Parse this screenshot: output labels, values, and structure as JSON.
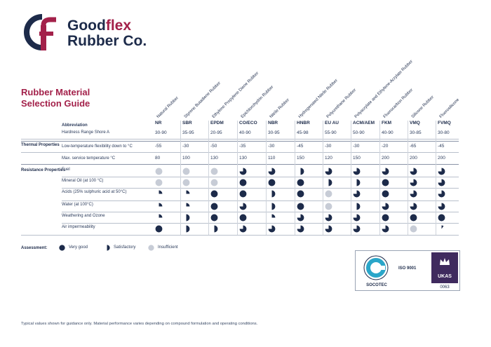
{
  "brand": {
    "line1_main": "Good",
    "line1_accent": "flex",
    "line2": "Rubber Co."
  },
  "title": {
    "line1": "Rubber Material",
    "line2": "Selection Guide"
  },
  "columns": [
    {
      "name": "Natural Rubber",
      "abbr": "NR",
      "hardness": "30-90",
      "low_temp": "-55",
      "max_temp": "80"
    },
    {
      "name": "Styrene Butadiene Rubber",
      "abbr": "SBR",
      "hardness": "35-95",
      "low_temp": "-30",
      "max_temp": "100"
    },
    {
      "name": "Ethylene Propylene Diene Rubber",
      "abbr": "EPDM",
      "hardness": "20-95",
      "low_temp": "-50",
      "max_temp": "130"
    },
    {
      "name": "Epichlorohydrin Rubber",
      "abbr": "CO/ECO",
      "hardness": "40-90",
      "low_temp": "-35",
      "max_temp": "130"
    },
    {
      "name": "Nitrile Rubber",
      "abbr": "NBR",
      "hardness": "30-95",
      "low_temp": "-30",
      "max_temp": "110"
    },
    {
      "name": "Hydrogenated Nitrile Rubber",
      "abbr": "HNBR",
      "hardness": "45-98",
      "low_temp": "-45",
      "max_temp": "150"
    },
    {
      "name": "Polyurethane Rubber",
      "abbr": "EU AU",
      "hardness": "55-90",
      "low_temp": "-30",
      "max_temp": "120"
    },
    {
      "name": "Polyacrylate and Ethylene-Acrylate Rubber",
      "abbr": "ACM/AEM",
      "hardness": "50-90",
      "low_temp": "-30",
      "max_temp": "150"
    },
    {
      "name": "Fluorocarbon Rubber",
      "abbr": "FKM",
      "hardness": "40-90",
      "low_temp": "-20",
      "max_temp": "200"
    },
    {
      "name": "Silicone Rubber",
      "abbr": "VMQ",
      "hardness": "30-85",
      "low_temp": "-65",
      "max_temp": "200"
    },
    {
      "name": "Fluorosilicone",
      "abbr": "FVMQ",
      "hardness": "30-80",
      "low_temp": "-45",
      "max_temp": "200"
    }
  ],
  "rows": {
    "abbreviation": "Abbreviation",
    "hardness": "Hardness Range Shore A",
    "thermal_group": "Thermal Properties",
    "low_temp": "Low-temperature flexibility down to °C",
    "max_temp": "Max. service temperature °C",
    "resistance_group": "Resistance Properties"
  },
  "resistance_rows": [
    {
      "label": "Fuel",
      "ratings": [
        0,
        0,
        0,
        0.75,
        0.75,
        0.5,
        0.75,
        0.75,
        0.75,
        0.75,
        0.75
      ]
    },
    {
      "label": "Mineral Oil (at 100 °C)",
      "ratings": [
        0,
        0,
        0,
        1,
        1,
        1,
        0.5,
        0.5,
        1,
        0.75,
        0.75
      ]
    },
    {
      "label": "Acids (25% sulphuric acid at 50°C)",
      "ratings": [
        0.25,
        0.25,
        1,
        1,
        0.5,
        1,
        0,
        0.75,
        1,
        0.75,
        0.75
      ]
    },
    {
      "label": "Water (at 100°C)",
      "ratings": [
        0.25,
        0.25,
        1,
        0.75,
        0.5,
        1,
        0,
        0.5,
        0.75,
        0.75,
        0.75
      ]
    },
    {
      "label": "Weathering and Ozone",
      "ratings": [
        0.25,
        0.5,
        1,
        1,
        0.25,
        0.75,
        0.75,
        0.75,
        1,
        1,
        1
      ]
    },
    {
      "label": "Air impermeability",
      "ratings": [
        1,
        0.5,
        0.5,
        0.75,
        0.75,
        0.75,
        0.75,
        0.75,
        0.75,
        0,
        0.1
      ]
    }
  ],
  "legend": {
    "title": "Assessment:",
    "very_good": "Very good",
    "satisfactory": "Satisfactory",
    "insufficient": "Insufficient"
  },
  "certs": {
    "socotec": "SOCOTEC",
    "iso": "ISO 9001",
    "ukas": "UKAS",
    "ukas_number": "0063"
  },
  "footer": "Typical values shown for guidance only. Material performance varies depending on compound formulation and operating conditions.",
  "colors": {
    "navy": "#1d2b4a",
    "accent": "#a3214a",
    "insufficient": "#c7ccd6"
  }
}
